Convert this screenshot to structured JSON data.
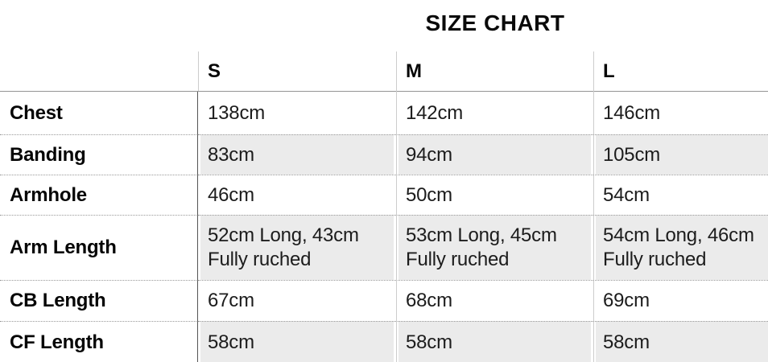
{
  "title": "SIZE CHART",
  "table": {
    "columns": [
      "",
      "S",
      "M",
      "L"
    ],
    "rows": [
      {
        "label": "Chest",
        "striped": false,
        "values": [
          "138cm",
          "142cm",
          "146cm"
        ]
      },
      {
        "label": "Banding",
        "striped": true,
        "values": [
          "83cm",
          "94cm",
          "105cm"
        ]
      },
      {
        "label": "Armhole",
        "striped": false,
        "values": [
          "46cm",
          "50cm",
          "54cm"
        ]
      },
      {
        "label": "Arm Length",
        "striped": true,
        "values": [
          "52cm Long, 43cm Fully ruched",
          "53cm Long, 45cm Fully ruched",
          "54cm Long, 46cm Fully ruched"
        ]
      },
      {
        "label": "CB Length",
        "striped": false,
        "values": [
          "67cm",
          "68cm",
          "69cm"
        ]
      },
      {
        "label": "CF Length",
        "striped": true,
        "values": [
          "58cm",
          "58cm",
          "58cm"
        ]
      }
    ]
  },
  "colors": {
    "stripe": "#ebebeb",
    "grid_light": "#cccccc",
    "grid_dark": "#555555",
    "header_rule": "#949494",
    "dotted_rule": "#999999",
    "text": "#0a0a0a"
  }
}
